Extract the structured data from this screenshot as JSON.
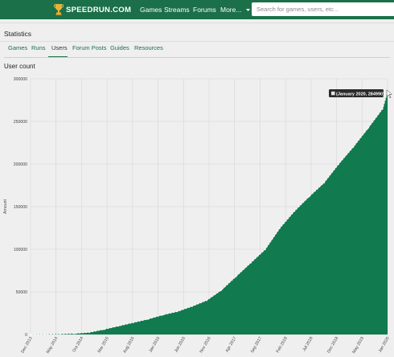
{
  "nav": {
    "brand": "SPEEDRUN.COM",
    "links": [
      {
        "label": "Games"
      },
      {
        "label": "Streams"
      },
      {
        "label": "Forums"
      },
      {
        "label": "More..."
      }
    ],
    "search_placeholder": "Search for games, users, etc..."
  },
  "page": {
    "title": "Statistics",
    "tabs": [
      {
        "label": "Games",
        "active": false
      },
      {
        "label": "Runs",
        "active": false
      },
      {
        "label": "Users",
        "active": true
      },
      {
        "label": "Forum Posts",
        "active": false
      },
      {
        "label": "Guides",
        "active": false
      },
      {
        "label": "Resources",
        "active": false
      }
    ],
    "section_title": "User count"
  },
  "colors": {
    "brand": "#1b6f49",
    "area": "#117a4e",
    "line": "#ffffff"
  },
  "chart_data": {
    "type": "area",
    "ylabel": "Amount",
    "ylim": [
      0,
      300000
    ],
    "yticks": [
      "0",
      "50000",
      "100000",
      "150000",
      "200000",
      "250000",
      "300000"
    ],
    "xticks": [
      "Dec 2013",
      "May 2014",
      "Oct 2014",
      "Mar 2015",
      "Aug 2015",
      "Jan 2016",
      "Jun 2016",
      "Nov 2016",
      "Apr 2017",
      "Sep 2017",
      "Feb 2018",
      "Jul 2018",
      "Dec 2018",
      "May 2019",
      "Jan 2020"
    ],
    "series": [
      {
        "points": [
          [
            "2013-12",
            0
          ],
          [
            "2014-03",
            300
          ],
          [
            "2014-06",
            700
          ],
          [
            "2014-09",
            1200
          ],
          [
            "2014-12",
            2500
          ],
          [
            "2015-03",
            6000
          ],
          [
            "2015-06",
            10000
          ],
          [
            "2015-09",
            14000
          ],
          [
            "2015-12",
            18000
          ],
          [
            "2016-03",
            23000
          ],
          [
            "2016-06",
            27000
          ],
          [
            "2016-09",
            33000
          ],
          [
            "2016-12",
            40000
          ],
          [
            "2017-03",
            52000
          ],
          [
            "2017-06",
            68000
          ],
          [
            "2017-09",
            84000
          ],
          [
            "2017-12",
            100000
          ],
          [
            "2018-03",
            125000
          ],
          [
            "2018-06",
            145000
          ],
          [
            "2018-09",
            162000
          ],
          [
            "2018-12",
            178000
          ],
          [
            "2019-03",
            200000
          ],
          [
            "2019-06",
            220000
          ],
          [
            "2019-09",
            242000
          ],
          [
            "2019-12",
            265000
          ],
          [
            "2020-01",
            284990
          ]
        ]
      }
    ],
    "tooltip": "(January 2020, 284990)"
  }
}
